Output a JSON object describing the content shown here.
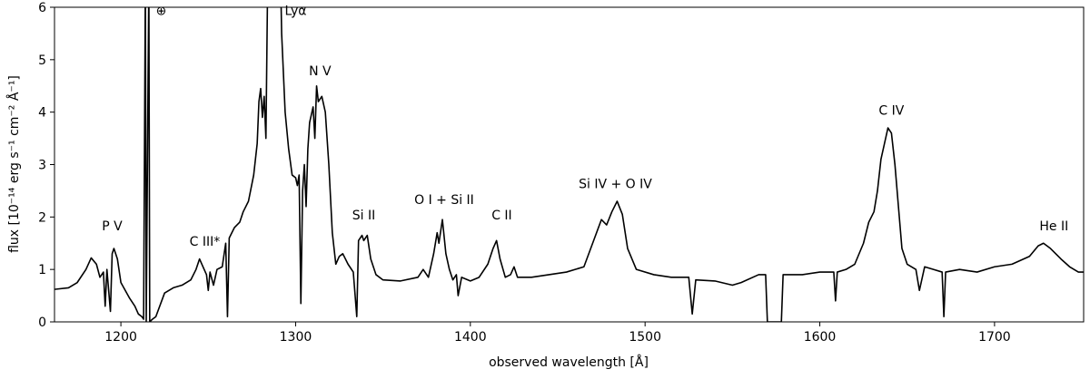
{
  "chart_data": {
    "type": "line",
    "x_label": "observed wavelength [Å]",
    "y_label": "flux [10⁻¹⁴ erg s⁻¹ cm⁻² Å⁻¹]",
    "xlim": [
      1162,
      1751
    ],
    "ylim": [
      0,
      6
    ],
    "xticks": [
      1200,
      1300,
      1400,
      1500,
      1600,
      1700
    ],
    "yticks": [
      0,
      1,
      2,
      3,
      4,
      5,
      6
    ],
    "color": "#000000",
    "x": [
      1162,
      1170,
      1175,
      1180,
      1183,
      1186,
      1188,
      1190,
      1191,
      1192,
      1194,
      1195,
      1196,
      1198,
      1200,
      1205,
      1208,
      1210,
      1212,
      1213,
      1214,
      1214.5,
      1216,
      1216.5,
      1218,
      1220,
      1225,
      1230,
      1235,
      1240,
      1243,
      1245,
      1247,
      1249,
      1250,
      1251,
      1253,
      1255,
      1258,
      1260,
      1261,
      1262,
      1265,
      1268,
      1270,
      1273,
      1276,
      1278,
      1279,
      1280,
      1281,
      1282,
      1283,
      1284,
      1286,
      1290,
      1292,
      1294,
      1296,
      1298,
      1300,
      1301,
      1302,
      1303,
      1304,
      1305,
      1306,
      1307,
      1308,
      1310,
      1311,
      1312,
      1313,
      1315,
      1317,
      1319,
      1321,
      1323,
      1325,
      1327,
      1330,
      1333,
      1335,
      1336,
      1338,
      1339,
      1341,
      1343,
      1346,
      1350,
      1360,
      1370,
      1373,
      1376,
      1379,
      1381,
      1382,
      1384,
      1386,
      1388,
      1390,
      1392,
      1393,
      1395,
      1400,
      1405,
      1410,
      1413,
      1415,
      1417,
      1420,
      1423,
      1425,
      1427,
      1435,
      1445,
      1455,
      1465,
      1470,
      1475,
      1478,
      1481,
      1484,
      1487,
      1490,
      1495,
      1505,
      1515,
      1525,
      1527,
      1529,
      1540,
      1550,
      1555,
      1565,
      1569,
      1570,
      1578,
      1579,
      1590,
      1600,
      1608,
      1609,
      1610,
      1615,
      1620,
      1625,
      1628,
      1631,
      1633,
      1635,
      1637,
      1639,
      1641,
      1643,
      1645,
      1647,
      1650,
      1655,
      1657,
      1660,
      1665,
      1670,
      1671,
      1672,
      1680,
      1690,
      1700,
      1710,
      1720,
      1725,
      1728,
      1732,
      1738,
      1743,
      1748,
      1751
    ],
    "values": [
      0.62,
      0.65,
      0.75,
      1.0,
      1.22,
      1.1,
      0.85,
      0.95,
      0.3,
      1.0,
      0.2,
      1.3,
      1.4,
      1.2,
      0.75,
      0.45,
      0.3,
      0.15,
      0.1,
      0.05,
      6.5,
      0.0,
      6.5,
      0.0,
      0.05,
      0.1,
      0.55,
      0.65,
      0.7,
      0.8,
      1.0,
      1.2,
      1.05,
      0.9,
      0.6,
      0.95,
      0.7,
      1.0,
      1.05,
      1.5,
      0.1,
      1.6,
      1.8,
      1.9,
      2.1,
      2.3,
      2.8,
      3.4,
      4.2,
      4.45,
      3.9,
      4.3,
      3.5,
      6.5,
      9,
      9,
      5.5,
      4.0,
      3.3,
      2.8,
      2.75,
      2.6,
      2.8,
      0.35,
      2.5,
      3.0,
      2.2,
      3.3,
      3.8,
      4.1,
      3.5,
      4.5,
      4.2,
      4.3,
      4.0,
      3.0,
      1.7,
      1.1,
      1.25,
      1.3,
      1.1,
      0.95,
      0.1,
      1.55,
      1.65,
      1.55,
      1.65,
      1.2,
      0.9,
      0.8,
      0.78,
      0.85,
      1.0,
      0.85,
      1.3,
      1.7,
      1.5,
      1.95,
      1.3,
      1.0,
      0.8,
      0.9,
      0.5,
      0.85,
      0.78,
      0.85,
      1.1,
      1.4,
      1.55,
      1.2,
      0.85,
      0.9,
      1.05,
      0.85,
      0.85,
      0.9,
      0.95,
      1.05,
      1.5,
      1.95,
      1.85,
      2.1,
      2.3,
      2.05,
      1.4,
      1.0,
      0.9,
      0.85,
      0.85,
      0.15,
      0.8,
      0.78,
      0.7,
      0.75,
      0.9,
      0.9,
      0,
      0,
      0.9,
      0.9,
      0.95,
      0.95,
      0.4,
      0.95,
      1.0,
      1.1,
      1.5,
      1.9,
      2.1,
      2.5,
      3.1,
      3.4,
      3.7,
      3.6,
      3.0,
      2.2,
      1.4,
      1.1,
      1.0,
      0.6,
      1.05,
      1.0,
      0.95,
      0.1,
      0.95,
      1.0,
      0.95,
      1.05,
      1.1,
      1.25,
      1.45,
      1.5,
      1.4,
      1.2,
      1.05,
      0.95,
      0.95
    ],
    "annotations": [
      {
        "text": "P V",
        "x": 1195,
        "y": 1.75
      },
      {
        "text": "C III*",
        "x": 1248,
        "y": 1.45
      },
      {
        "text": "⊕",
        "x": 1223,
        "y": 5.85
      },
      {
        "text": "Lyα",
        "x": 1300,
        "y": 5.85
      },
      {
        "text": "N V",
        "x": 1314,
        "y": 4.7
      },
      {
        "text": "Si II",
        "x": 1339,
        "y": 1.95
      },
      {
        "text": "O I + Si II",
        "x": 1385,
        "y": 2.25
      },
      {
        "text": "C II",
        "x": 1418,
        "y": 1.95
      },
      {
        "text": "Si IV + O IV",
        "x": 1483,
        "y": 2.55
      },
      {
        "text": "C IV",
        "x": 1641,
        "y": 3.95
      },
      {
        "text": "He II",
        "x": 1734,
        "y": 1.75
      }
    ]
  }
}
